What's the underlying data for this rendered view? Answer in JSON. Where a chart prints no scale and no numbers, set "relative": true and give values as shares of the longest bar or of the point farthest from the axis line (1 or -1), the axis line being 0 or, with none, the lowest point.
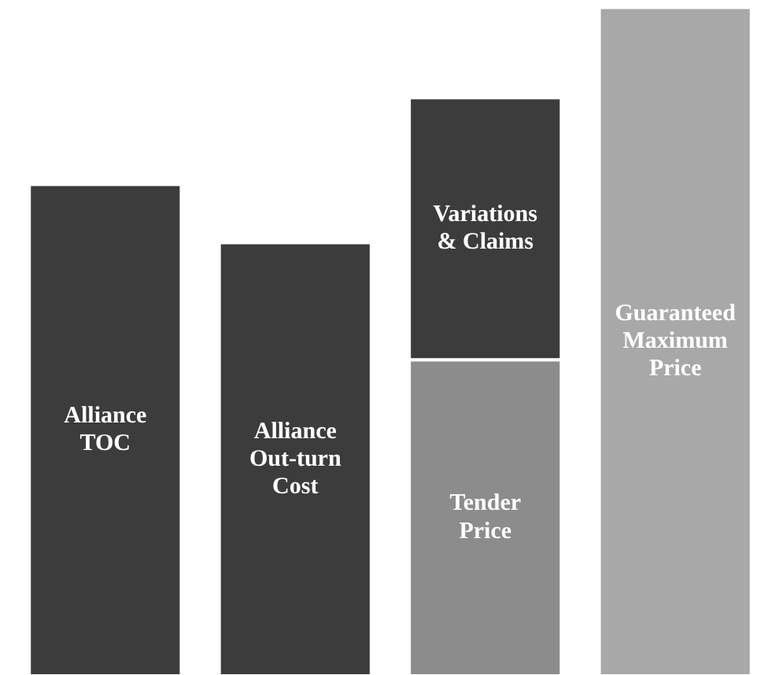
{
  "chart_data": {
    "type": "bar",
    "relative": true,
    "stacked": true,
    "categories": [
      "Alliance\nTOC",
      "Alliance\nOut-turn\nCost",
      "Tender\nPrice",
      "Guaranteed\nMaximum\nPrice"
    ],
    "series": [
      {
        "colors": [
          "#3c3c3c",
          "#3c3c3c",
          "#8c8c8c",
          "#a8a8a8"
        ],
        "values": [
          0.735,
          0.648,
          0.473,
          1.0
        ]
      },
      {
        "name": "Variations\n& Claims",
        "color": "#3c3c3c",
        "values": [
          null,
          null,
          0.392,
          null
        ]
      }
    ]
  }
}
